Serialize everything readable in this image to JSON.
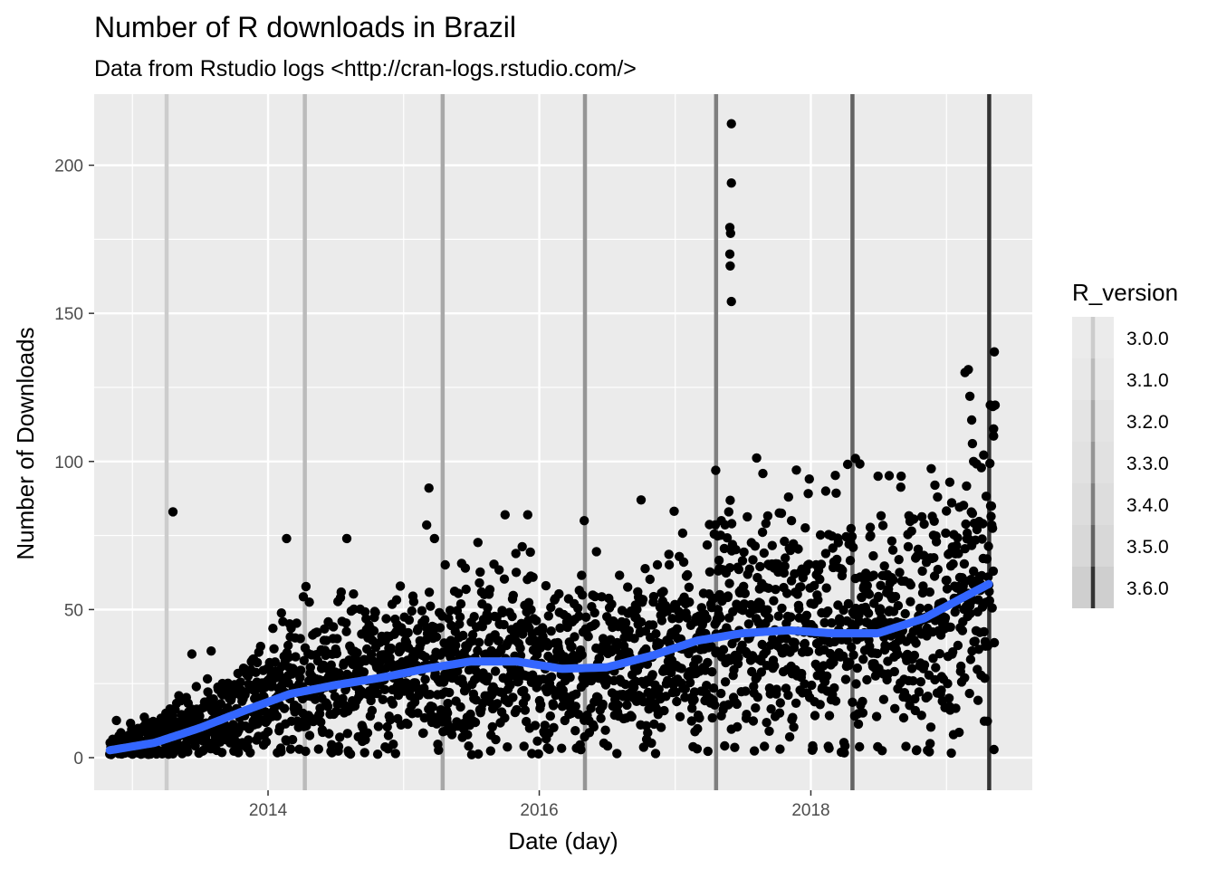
{
  "chart_data": {
    "type": "scatter",
    "title": "Number of R downloads in Brazil",
    "subtitle": "Data from Rstudio logs <http://cran-logs.rstudio.com/>",
    "xlabel": "Date (day)",
    "ylabel": "Number of Downloads",
    "xlim": [
      "2012-09-20",
      "2019-08-20"
    ],
    "ylim": [
      -11,
      224
    ],
    "x_ticks": [
      "2014-01-01",
      "2016-01-01",
      "2018-01-01"
    ],
    "x_tick_labels": [
      "2014",
      "2016",
      "2018"
    ],
    "y_ticks": [
      0,
      50,
      100,
      150,
      200
    ],
    "y_tick_labels": [
      "0",
      "50",
      "100",
      "150",
      "200"
    ],
    "grid": true,
    "point_color": "#000000",
    "smooth_color": "#3366ff",
    "panel_background": "#ebebeb",
    "smooth_trend": {
      "x": [
        "2012-11-01",
        "2013-03-01",
        "2013-07-01",
        "2013-11-01",
        "2014-03-01",
        "2014-07-01",
        "2014-11-01",
        "2015-03-01",
        "2015-07-01",
        "2015-11-01",
        "2016-03-01",
        "2016-07-01",
        "2016-11-01",
        "2017-03-01",
        "2017-07-01",
        "2017-11-01",
        "2018-03-01",
        "2018-07-01",
        "2018-11-01",
        "2019-03-01",
        "2019-05-01"
      ],
      "y": [
        2.5,
        5,
        10,
        16,
        21.5,
        24.5,
        27,
        30,
        32.5,
        32.5,
        30,
        30.5,
        34.5,
        39.5,
        42,
        43,
        42,
        42,
        47,
        55,
        59
      ]
    },
    "releases": [
      {
        "version": "3.0.0",
        "date": "2013-04-03",
        "color": "#cccccc"
      },
      {
        "version": "3.1.0",
        "date": "2014-04-10",
        "color": "#bbbbbb"
      },
      {
        "version": "3.2.0",
        "date": "2015-04-16",
        "color": "#a8a8a8"
      },
      {
        "version": "3.3.0",
        "date": "2016-05-03",
        "color": "#959595"
      },
      {
        "version": "3.4.0",
        "date": "2017-04-21",
        "color": "#7f7f7f"
      },
      {
        "version": "3.5.0",
        "date": "2018-04-23",
        "color": "#636363"
      },
      {
        "version": "3.6.0",
        "date": "2019-04-26",
        "color": "#333333"
      }
    ],
    "outliers": [
      {
        "x": "2013-04-20",
        "y": 83
      },
      {
        "x": "2013-08-01",
        "y": 36
      },
      {
        "x": "2013-06-10",
        "y": 35
      },
      {
        "x": "2014-02-20",
        "y": 74
      },
      {
        "x": "2014-08-01",
        "y": 74
      },
      {
        "x": "2015-03-10",
        "y": 91
      },
      {
        "x": "2015-03-25",
        "y": 74
      },
      {
        "x": "2015-10-01",
        "y": 82
      },
      {
        "x": "2015-12-01",
        "y": 82
      },
      {
        "x": "2016-05-01",
        "y": 80
      },
      {
        "x": "2016-10-01",
        "y": 87
      },
      {
        "x": "2017-04-20",
        "y": 97
      },
      {
        "x": "2017-05-05",
        "y": 80
      },
      {
        "x": "2017-06-01",
        "y": 214
      },
      {
        "x": "2017-06-01",
        "y": 194
      },
      {
        "x": "2017-05-28",
        "y": 179
      },
      {
        "x": "2017-05-30",
        "y": 177
      },
      {
        "x": "2017-05-28",
        "y": 170
      },
      {
        "x": "2017-05-29",
        "y": 166
      },
      {
        "x": "2017-06-01",
        "y": 154
      },
      {
        "x": "2017-05-25",
        "y": 83
      },
      {
        "x": "2017-06-02",
        "y": 79
      },
      {
        "x": "2018-04-10",
        "y": 99
      },
      {
        "x": "2018-05-01",
        "y": 101
      },
      {
        "x": "2018-07-01",
        "y": 95
      },
      {
        "x": "2018-09-01",
        "y": 95
      },
      {
        "x": "2019-02-20",
        "y": 130
      },
      {
        "x": "2019-03-01",
        "y": 131
      },
      {
        "x": "2019-03-05",
        "y": 122
      },
      {
        "x": "2019-03-10",
        "y": 114
      },
      {
        "x": "2019-03-12",
        "y": 106
      },
      {
        "x": "2019-03-15",
        "y": 100
      },
      {
        "x": "2019-05-10",
        "y": 137
      },
      {
        "x": "2019-05-12",
        "y": 119
      },
      {
        "x": "2019-05-08",
        "y": 111
      },
      {
        "x": "2018-12-01",
        "y": 92
      },
      {
        "x": "2019-01-10",
        "y": 93
      },
      {
        "x": "2018-02-10",
        "y": 90
      },
      {
        "x": "2017-11-10",
        "y": 80
      }
    ]
  },
  "legend": {
    "title": "R_version",
    "items": [
      {
        "label": "3.0.0",
        "color": "#cccccc"
      },
      {
        "label": "3.1.0",
        "color": "#bbbbbb"
      },
      {
        "label": "3.2.0",
        "color": "#a8a8a8"
      },
      {
        "label": "3.3.0",
        "color": "#959595"
      },
      {
        "label": "3.4.0",
        "color": "#7f7f7f"
      },
      {
        "label": "3.5.0",
        "color": "#636363"
      },
      {
        "label": "3.6.0",
        "color": "#333333"
      }
    ]
  }
}
